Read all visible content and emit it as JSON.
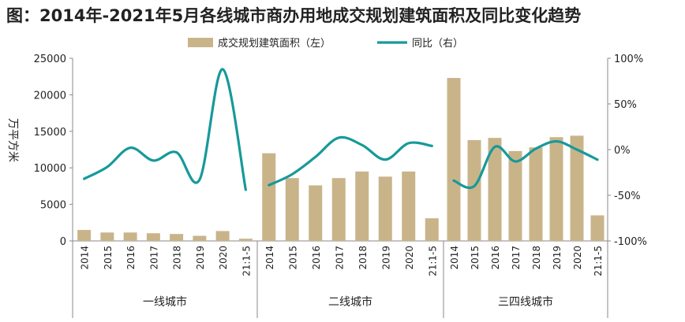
{
  "chart_data": {
    "type": "bar",
    "title": "图：2014年-2021年5月各线城市商办用地成交规划建筑面积及同比变化趋势",
    "ylabel": "万平方米",
    "ylim": [
      0,
      25000
    ],
    "y_ticks": [
      "0",
      "5000",
      "10000",
      "15000",
      "20000",
      "25000"
    ],
    "y2lim": [
      -100,
      100
    ],
    "y2_ticks": [
      "-100%",
      "-50%",
      "0%",
      "50%",
      "100%"
    ],
    "legend_position": "top",
    "groups": [
      {
        "name": "一线城市",
        "categories": [
          "2014",
          "2015",
          "2016",
          "2017",
          "2018",
          "2019",
          "2020",
          "21:1-5"
        ],
        "area": [
          1500,
          1150,
          1150,
          1050,
          950,
          700,
          1350,
          300
        ],
        "yoy": [
          -32,
          -19,
          2,
          -12,
          -3,
          -33,
          88,
          -44
        ]
      },
      {
        "name": "二线城市",
        "categories": [
          "2014",
          "2015",
          "2016",
          "2017",
          "2018",
          "2019",
          "2020",
          "21:1-5"
        ],
        "area": [
          12000,
          8600,
          7600,
          8600,
          9500,
          8800,
          9500,
          3100
        ],
        "yoy": [
          -39,
          -27,
          -8,
          13,
          5,
          -11,
          7,
          4
        ]
      },
      {
        "name": "三四线城市",
        "categories": [
          "2014",
          "2015",
          "2016",
          "2017",
          "2018",
          "2019",
          "2020",
          "21:1-5"
        ],
        "area": [
          22300,
          13800,
          14100,
          12300,
          12800,
          14200,
          14400,
          3500
        ],
        "yoy": [
          -34,
          -40,
          3,
          -13,
          1,
          9,
          0,
          -11
        ]
      }
    ],
    "series": [
      {
        "name": "成交规划建筑面积（左）",
        "kind": "bar",
        "color": "#c9b48a"
      },
      {
        "name": "同比（右）",
        "kind": "line",
        "color": "#17999a"
      }
    ]
  }
}
